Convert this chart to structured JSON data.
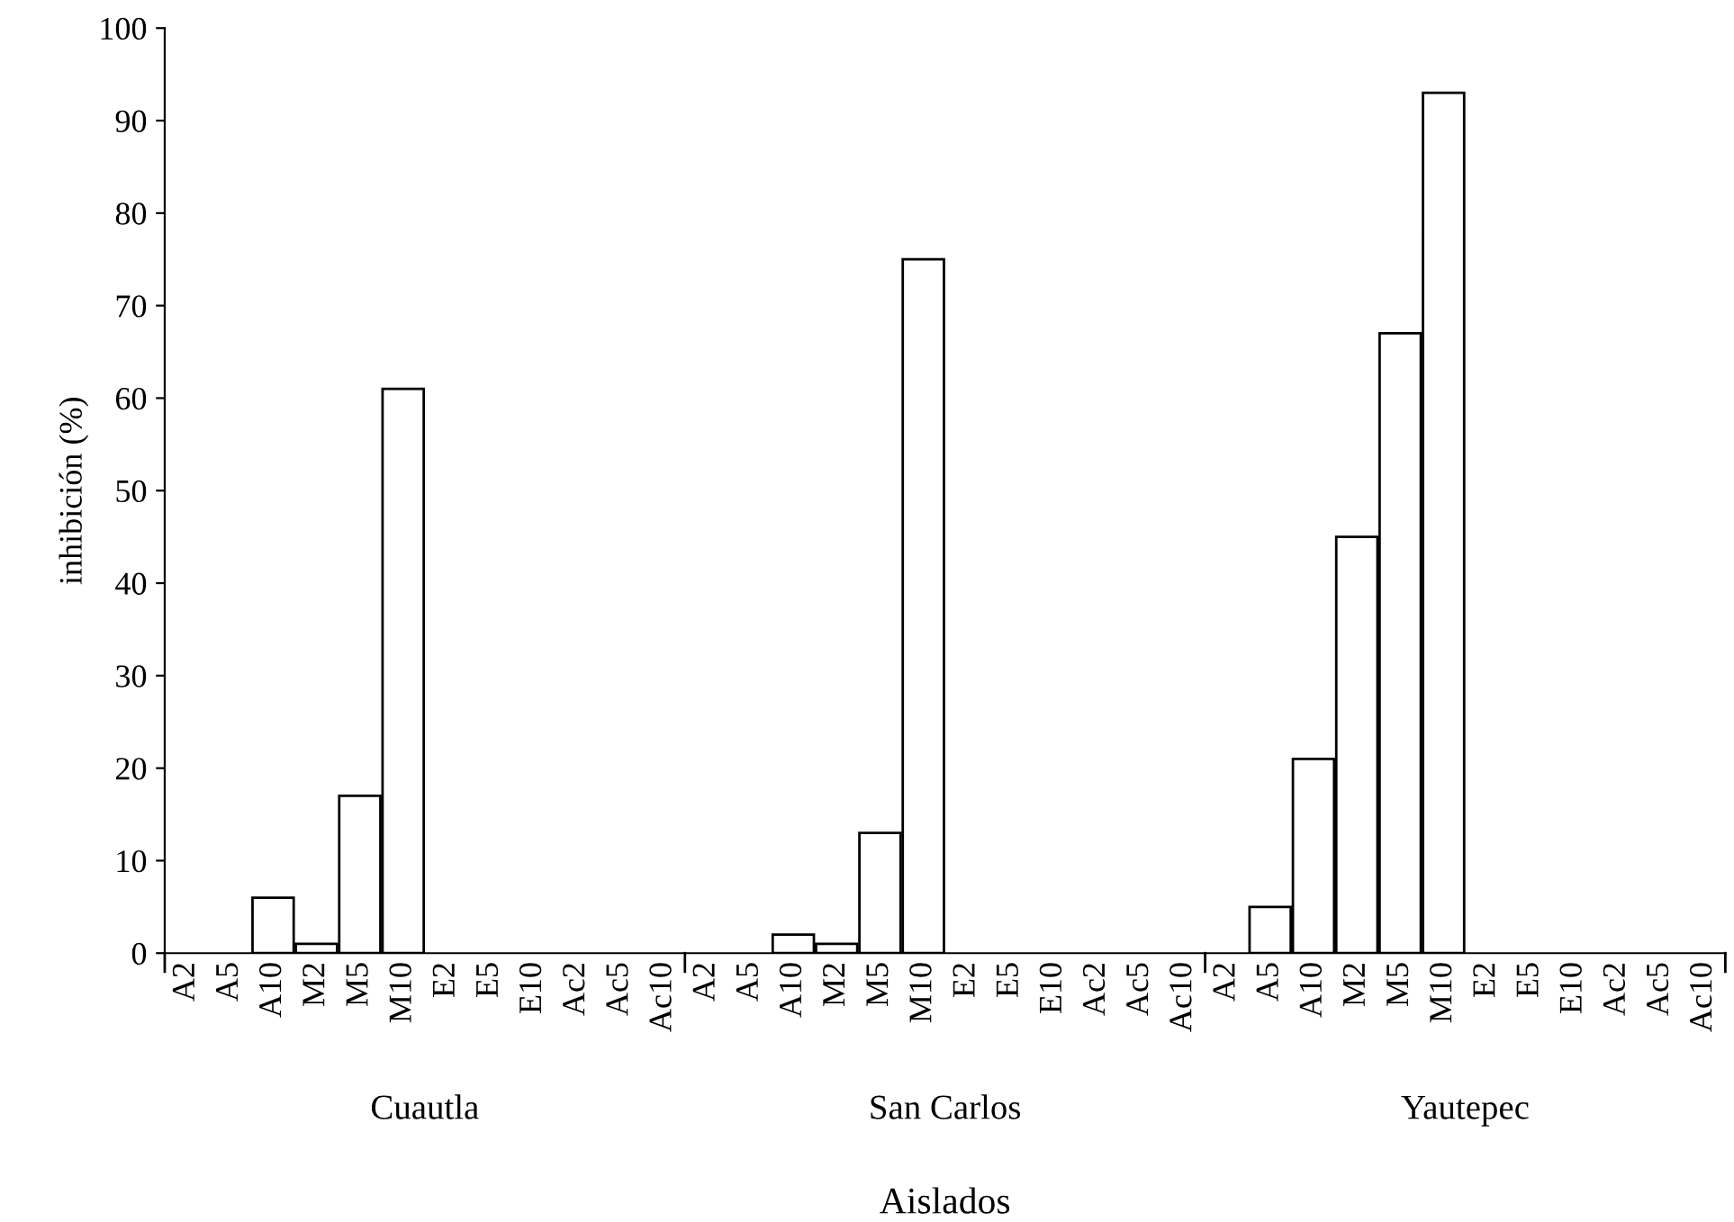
{
  "chart_data": {
    "type": "bar",
    "xlabel": "Aislados",
    "ylabel": "inhibición (%)",
    "categories": [
      "A2",
      "A5",
      "A10",
      "M2",
      "M5",
      "M10",
      "E2",
      "E5",
      "E10",
      "Ac2",
      "Ac5",
      "Ac10",
      "A2",
      "A5",
      "A10",
      "M2",
      "M5",
      "M10",
      "E2",
      "E5",
      "E10",
      "Ac2",
      "Ac5",
      "Ac10",
      "A2",
      "A5",
      "A10",
      "M2",
      "M5",
      "M10",
      "E2",
      "E5",
      "E10",
      "Ac2",
      "Ac5",
      "Ac10"
    ],
    "values": [
      0,
      0,
      6,
      1,
      17,
      61,
      0,
      0,
      0,
      0,
      0,
      0,
      0,
      0,
      2,
      1,
      13,
      75,
      0,
      0,
      0,
      0,
      0,
      0,
      0,
      5,
      21,
      45,
      67,
      93,
      0,
      0,
      0,
      0,
      0,
      0
    ],
    "color": "#ffffff",
    "ylim": [
      0,
      100
    ],
    "yticks": [
      0,
      10,
      20,
      30,
      40,
      50,
      60,
      70,
      80,
      90,
      100
    ],
    "grid": false,
    "legend": false,
    "annotations": [
      "Cuautla",
      "San Carlos",
      "Yautepec"
    ]
  }
}
